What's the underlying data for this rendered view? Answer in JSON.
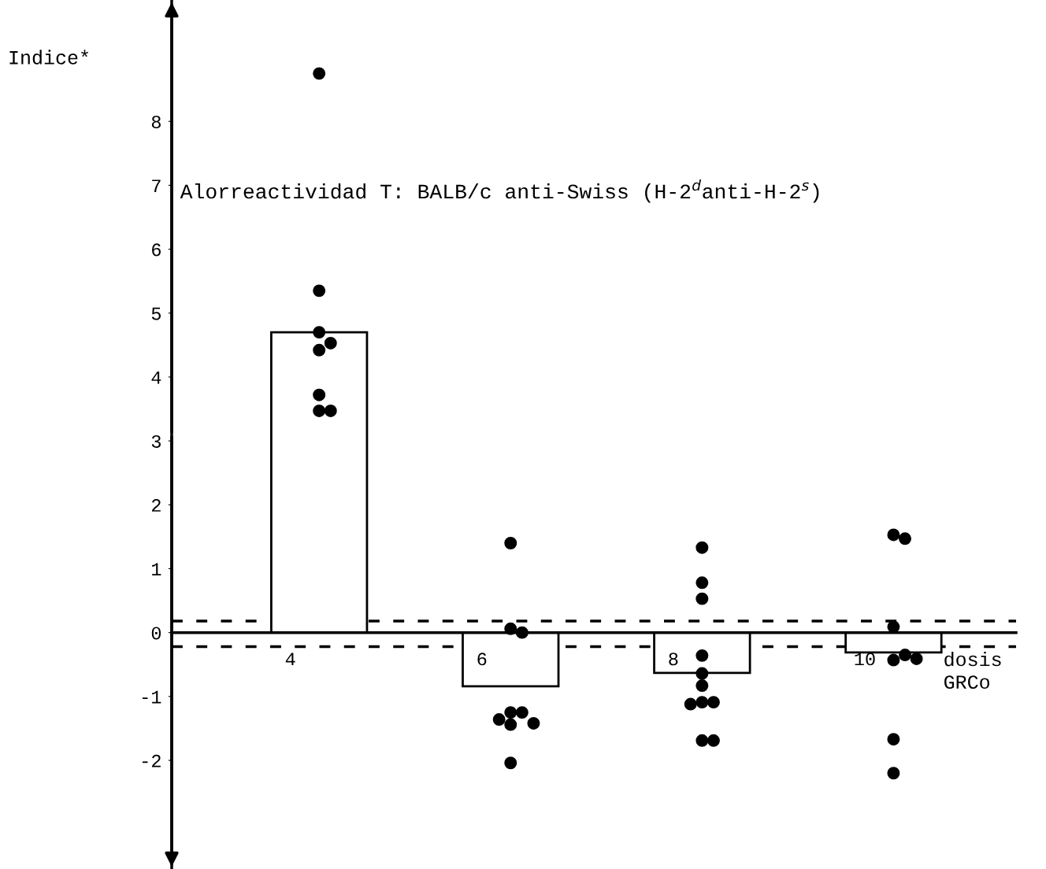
{
  "chart_data": {
    "type": "bar",
    "title": "Alorreactividad T: BALB/c anti-Swiss (H-2$^{d}$anti-H-2$^{s}$)",
    "ylabel": "Indice*",
    "xlabel": "dosis\nGRCo",
    "categories": [
      "4",
      "6",
      "8",
      "10"
    ],
    "series": [
      {
        "color": "#ffffff",
        "values": [
          4.7,
          -0.84,
          -0.63,
          -0.31
        ]
      },
      {
        "type": "scatter",
        "color": "#000000",
        "x": [
          "4",
          "4",
          "4",
          "4",
          "4",
          "4",
          "4",
          "4",
          "6",
          "6",
          "6",
          "6",
          "6",
          "6",
          "6",
          "6",
          "6",
          "8",
          "8",
          "8",
          "8",
          "8",
          "8",
          "8",
          "8",
          "8",
          "8",
          "8",
          "10",
          "10",
          "10",
          "10",
          "10",
          "10",
          "10",
          "10"
        ],
        "values": [
          8.75,
          5.35,
          4.7,
          4.53,
          4.42,
          3.72,
          3.47,
          3.47,
          1.4,
          0.06,
          0.0,
          -1.25,
          -1.25,
          -1.36,
          -1.44,
          -1.42,
          -2.04,
          1.33,
          0.78,
          0.53,
          -0.36,
          -0.64,
          -0.83,
          -1.09,
          -1.09,
          -1.12,
          -1.69,
          -1.69,
          1.53,
          1.47,
          0.09,
          -0.43,
          -0.35,
          -0.41,
          -1.67,
          -2.2
        ]
      }
    ],
    "ylim": [
      -3.7,
      9.9
    ],
    "yticks": [
      -2,
      -1,
      0,
      1,
      2,
      3,
      4,
      5,
      6,
      7,
      8
    ],
    "ref_lines": [
      {
        "axis": "y",
        "value": 0.18,
        "line_style": "dashed"
      },
      {
        "axis": "y",
        "value": -0.22,
        "line_style": "dashed"
      }
    ],
    "marker": "circle",
    "grid": false,
    "legend": false
  }
}
